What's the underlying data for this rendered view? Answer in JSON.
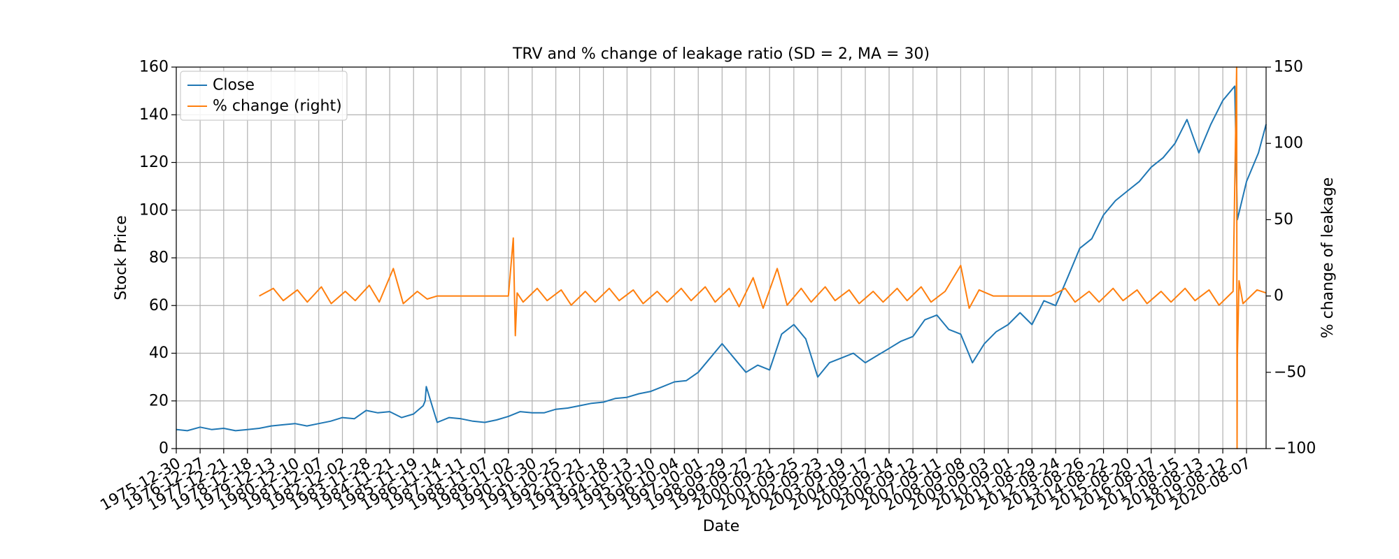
{
  "chart_data": {
    "type": "line",
    "title": "TRV and % change of leakage ratio (SD = 2, MA = 30)",
    "xlabel": "Date",
    "ylabel": "Stock Price",
    "ylabel_right": "% change of leakage",
    "grid": true,
    "legend_position": "top-left",
    "x_ticks": [
      "1975-12-30",
      "1976-12-27",
      "1977-12-21",
      "1978-12-18",
      "1979-12-13",
      "1980-12-10",
      "1981-12-07",
      "1982-12-02",
      "1983-11-28",
      "1984-11-21",
      "1985-11-19",
      "1986-11-14",
      "1987-11-11",
      "1988-11-07",
      "1989-11-02",
      "1990-10-30",
      "1991-10-25",
      "1992-10-21",
      "1993-10-18",
      "1994-10-13",
      "1995-10-10",
      "1996-10-04",
      "1997-10-01",
      "1998-09-29",
      "1999-09-27",
      "2000-09-21",
      "2001-09-25",
      "2002-09-23",
      "2003-09-19",
      "2004-09-17",
      "2005-09-14",
      "2006-09-12",
      "2007-09-11",
      "2008-09-08",
      "2009-09-03",
      "2010-09-01",
      "2011-08-29",
      "2012-08-24",
      "2013-08-26",
      "2014-08-22",
      "2015-08-20",
      "2016-08-17",
      "2017-08-15",
      "2018-08-13",
      "2019-08-12",
      "2020-08-07"
    ],
    "ylim": [
      0,
      160
    ],
    "y_ticks": [
      0,
      20,
      40,
      60,
      80,
      100,
      120,
      140,
      160
    ],
    "ylim_right": [
      -100,
      150
    ],
    "y_ticks_right": [
      -100,
      -50,
      0,
      50,
      100,
      150
    ],
    "series": [
      {
        "name": "Close",
        "axis": "left",
        "color": "#1f77b4",
        "x": [
          "1975-12-30",
          "1976-06-15",
          "1976-12-27",
          "1977-06-20",
          "1977-12-21",
          "1978-06-19",
          "1978-12-18",
          "1979-06-15",
          "1979-12-13",
          "1980-06-12",
          "1980-12-10",
          "1981-06-10",
          "1981-12-07",
          "1982-06-04",
          "1982-12-02",
          "1983-06-01",
          "1983-11-28",
          "1984-05-25",
          "1984-11-21",
          "1985-05-22",
          "1985-11-19",
          "1986-04-15",
          "1986-05-15",
          "1986-06-01",
          "1986-11-14",
          "1987-05-15",
          "1987-11-11",
          "1988-05-10",
          "1988-11-07",
          "1989-05-05",
          "1989-11-02",
          "1990-05-01",
          "1990-10-30",
          "1991-04-29",
          "1991-10-25",
          "1992-04-23",
          "1992-10-21",
          "1993-04-20",
          "1993-10-18",
          "1994-04-15",
          "1994-10-13",
          "1995-04-12",
          "1995-10-10",
          "1996-04-08",
          "1996-10-04",
          "1997-04-03",
          "1997-10-01",
          "1998-04-01",
          "1998-09-29",
          "1999-03-29",
          "1999-09-27",
          "2000-03-24",
          "2000-09-21",
          "2001-03-23",
          "2001-09-25",
          "2002-03-25",
          "2002-09-23",
          "2003-03-21",
          "2003-09-19",
          "2004-03-18",
          "2004-09-17",
          "2005-03-16",
          "2005-09-14",
          "2006-03-13",
          "2006-09-12",
          "2007-03-12",
          "2007-09-11",
          "2008-03-10",
          "2008-09-08",
          "2009-03-06",
          "2009-09-03",
          "2010-03-02",
          "2010-09-01",
          "2011-02-28",
          "2011-08-29",
          "2012-02-27",
          "2012-08-24",
          "2013-02-25",
          "2013-08-26",
          "2014-02-24",
          "2014-08-22",
          "2015-02-20",
          "2015-08-20",
          "2016-02-18",
          "2016-08-17",
          "2017-02-15",
          "2017-08-15",
          "2018-02-13",
          "2018-08-13",
          "2019-02-11",
          "2019-08-12",
          "2020-02-10",
          "2020-03-20",
          "2020-08-07",
          "2021-02-05",
          "2021-06-01"
        ],
        "values": [
          8.0,
          7.5,
          9.0,
          8.0,
          8.5,
          7.5,
          8.0,
          8.5,
          9.5,
          10.0,
          10.5,
          9.5,
          10.5,
          11.5,
          13.0,
          12.5,
          16.0,
          15.0,
          15.5,
          13.0,
          14.5,
          18.0,
          20.0,
          26.0,
          11.0,
          13.0,
          12.5,
          11.5,
          11.0,
          12.0,
          13.5,
          15.5,
          15.0,
          15.0,
          16.5,
          17.0,
          18.0,
          19.0,
          19.5,
          21.0,
          21.5,
          23.0,
          24.0,
          26.0,
          28.0,
          28.5,
          32.0,
          38.0,
          44.0,
          38.0,
          32.0,
          35.0,
          33.0,
          48.0,
          52.0,
          46.0,
          30.0,
          36.0,
          38.0,
          40.0,
          36.0,
          39.0,
          42.0,
          45.0,
          47.0,
          54.0,
          56.0,
          50.0,
          48.0,
          36.0,
          44.0,
          49.0,
          52.0,
          57.0,
          52.0,
          62.0,
          60.0,
          72.0,
          84.0,
          88.0,
          98.0,
          104.0,
          108.0,
          112.0,
          118.0,
          122.0,
          128.0,
          138.0,
          124.0,
          136.0,
          146.0,
          152.0,
          96.0,
          112.0,
          124.0,
          136.0
        ]
      },
      {
        "name": "% change (right)",
        "axis": "right",
        "color": "#ff7f0e",
        "x": [
          "1979-06-15",
          "1980-01-15",
          "1980-06-15",
          "1981-01-15",
          "1981-06-15",
          "1982-01-15",
          "1982-06-15",
          "1983-01-15",
          "1983-06-15",
          "1984-01-15",
          "1984-06-15",
          "1985-01-15",
          "1985-06-15",
          "1986-01-15",
          "1986-06-15",
          "1986-11-14",
          "1987-11-11",
          "1988-11-07",
          "1989-11-02",
          "1990-01-15",
          "1990-02-15",
          "1990-03-15",
          "1990-06-15",
          "1991-01-15",
          "1991-06-15",
          "1992-01-15",
          "1992-06-15",
          "1993-01-15",
          "1993-06-15",
          "1994-01-15",
          "1994-06-15",
          "1995-01-15",
          "1995-06-15",
          "1996-01-15",
          "1996-06-15",
          "1997-01-15",
          "1997-06-15",
          "1998-01-15",
          "1998-06-15",
          "1999-01-15",
          "1999-06-15",
          "2000-01-15",
          "2000-06-15",
          "2001-01-15",
          "2001-06-15",
          "2002-01-15",
          "2002-06-15",
          "2003-01-15",
          "2003-06-15",
          "2004-01-15",
          "2004-06-15",
          "2005-01-15",
          "2005-06-15",
          "2006-01-15",
          "2006-06-15",
          "2007-01-15",
          "2007-06-15",
          "2008-01-15",
          "2008-09-08",
          "2009-01-15",
          "2009-06-15",
          "2010-01-15",
          "2010-06-15",
          "2011-01-15",
          "2011-06-15",
          "2012-01-15",
          "2012-06-15",
          "2013-01-15",
          "2013-06-15",
          "2014-01-15",
          "2014-06-15",
          "2015-01-15",
          "2015-06-15",
          "2016-01-15",
          "2016-06-15",
          "2017-01-15",
          "2017-06-15",
          "2018-01-15",
          "2018-06-15",
          "2019-01-15",
          "2019-06-15",
          "2020-01-15",
          "2020-03-10",
          "2020-03-16",
          "2020-03-20",
          "2020-04-15",
          "2020-06-15",
          "2021-01-15",
          "2021-06-01"
        ],
        "values": [
          0,
          5,
          -3,
          4,
          -4,
          6,
          -5,
          3,
          -3,
          7,
          -4,
          18,
          -5,
          3,
          -2,
          0,
          0,
          0,
          0,
          38,
          -26,
          2,
          -4,
          5,
          -3,
          4,
          -6,
          3,
          -4,
          5,
          -3,
          4,
          -5,
          3,
          -4,
          5,
          -3,
          6,
          -4,
          5,
          -7,
          12,
          -8,
          18,
          -6,
          5,
          -4,
          6,
          -3,
          4,
          -5,
          3,
          -4,
          5,
          -3,
          6,
          -4,
          3,
          20,
          -8,
          4,
          0,
          0,
          0,
          0,
          0,
          0,
          5,
          -4,
          3,
          -4,
          5,
          -3,
          4,
          -5,
          3,
          -4,
          5,
          -3,
          4,
          -6,
          3,
          150,
          -100,
          -40,
          10,
          -5,
          4,
          2
        ]
      }
    ]
  }
}
